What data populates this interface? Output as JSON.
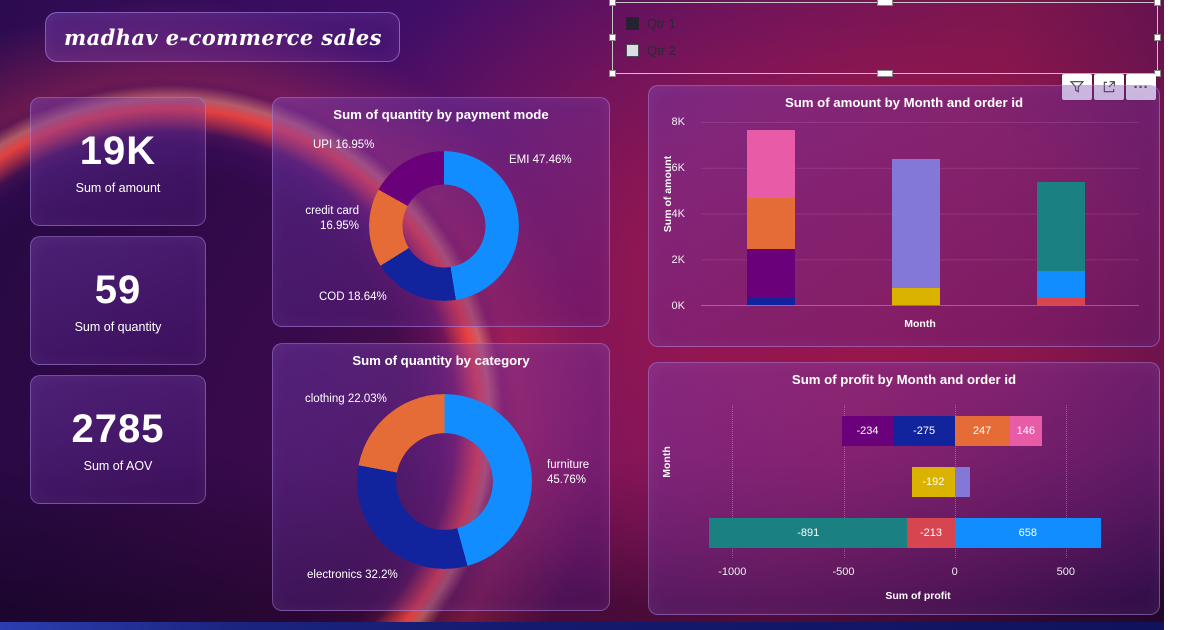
{
  "page": {
    "title": "madhav e-commerce sales"
  },
  "slicer": {
    "items": [
      {
        "label": "Qtr 1",
        "checked": true
      },
      {
        "label": "Qtr 2",
        "checked": false
      }
    ]
  },
  "toolbar": {
    "filter": "filter",
    "focus": "focus-mode",
    "more_glyph": "···"
  },
  "kpis": [
    {
      "value": "19K",
      "label": "Sum of amount"
    },
    {
      "value": "59",
      "label": "Sum of quantity"
    },
    {
      "value": "2785",
      "label": "Sum of AOV"
    }
  ],
  "colors": {
    "blue": "#118DFF",
    "navy": "#12239E",
    "orange": "#E66C37",
    "dark_purple": "#6B007B",
    "pink": "#E85BA7",
    "lavender": "#8377D8",
    "yellow": "#D9B300",
    "teal": "#1B8082",
    "red": "#D64550"
  },
  "chart_data": [
    {
      "id": "payment_donut",
      "type": "pie",
      "title": "Sum of quantity by payment mode",
      "labels": [
        "EMI",
        "COD",
        "credit card",
        "UPI"
      ],
      "values": [
        47.46,
        18.64,
        16.95,
        16.95
      ],
      "display_labels": [
        "EMI 47.46%",
        "COD 18.64%",
        "credit card 16.95%",
        "UPI 16.95%"
      ],
      "colors": [
        "#118DFF",
        "#12239E",
        "#E66C37",
        "#6B007B"
      ],
      "legend": "none"
    },
    {
      "id": "category_donut",
      "type": "pie",
      "title": "Sum of quantity by category",
      "labels": [
        "furniture",
        "electronics",
        "clothing"
      ],
      "values": [
        45.76,
        32.21,
        22.03
      ],
      "display_labels": [
        "furniture 45.76%",
        "electronics 32.2%",
        "clothing 22.03%"
      ],
      "colors": [
        "#118DFF",
        "#12239E",
        "#E66C37"
      ],
      "legend": "none"
    },
    {
      "id": "amount_by_month",
      "type": "bar",
      "title": "Sum of amount by Month and order id",
      "xlabel": "Month",
      "ylabel": "Sum of amount",
      "ylim": [
        0,
        8000
      ],
      "yticks": [
        "8K",
        "6K",
        "4K",
        "2K",
        "0K"
      ],
      "bars": [
        {
          "segments": [
            {
              "value": 300,
              "color": "#12239E"
            },
            {
              "value": 2150,
              "color": "#6B007B"
            },
            {
              "value": 2250,
              "color": "#E66C37"
            },
            {
              "value": 2950,
              "color": "#E85BA7"
            }
          ]
        },
        {
          "segments": [
            {
              "value": 750,
              "color": "#D9B300"
            },
            {
              "value": 5650,
              "color": "#8377D8"
            }
          ]
        },
        {
          "segments": [
            {
              "value": 300,
              "color": "#D64550"
            },
            {
              "value": 1200,
              "color": "#118DFF"
            },
            {
              "value": 3900,
              "color": "#1B8082"
            }
          ]
        }
      ]
    },
    {
      "id": "profit_by_month",
      "type": "bar",
      "title": "Sum of profit by Month and order id",
      "xlabel": "Sum of profit",
      "ylabel": "Month",
      "xlim": [
        -1150,
        820
      ],
      "xticks": [
        -1000,
        -500,
        0,
        500
      ],
      "rows": [
        {
          "segments": [
            {
              "value": -234,
              "color": "#6B007B",
              "label": "-234"
            },
            {
              "value": -275,
              "color": "#12239E",
              "label": "-275"
            },
            {
              "value": 247,
              "color": "#E66C37",
              "label": "247"
            },
            {
              "value": 146,
              "color": "#E85BA7",
              "label": "146"
            }
          ]
        },
        {
          "segments": [
            {
              "value": -192,
              "color": "#D9B300",
              "label": "-192"
            },
            {
              "value": 68,
              "color": "#8377D8",
              "label": ""
            }
          ]
        },
        {
          "segments": [
            {
              "value": -891,
              "color": "#1B8082",
              "label": "-891"
            },
            {
              "value": -213,
              "color": "#D64550",
              "label": "-213"
            },
            {
              "value": 658,
              "color": "#118DFF",
              "label": "658"
            }
          ]
        }
      ]
    }
  ]
}
